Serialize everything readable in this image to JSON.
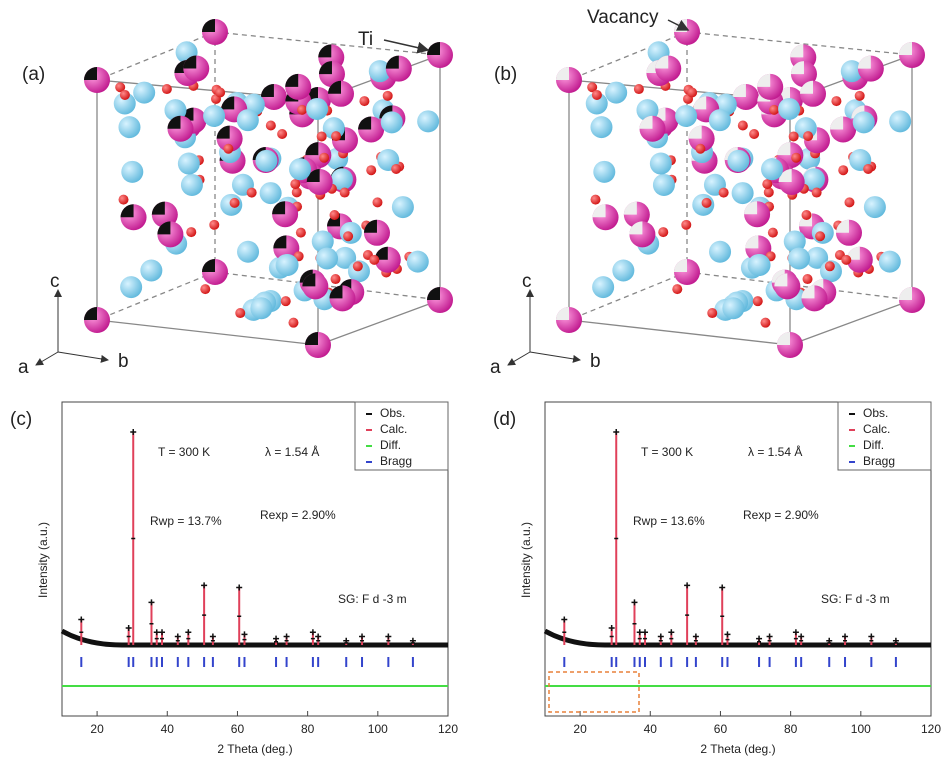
{
  "structures": [
    {
      "label": "(a)",
      "annotation": "Ti",
      "axes": [
        "a",
        "b",
        "c"
      ]
    },
    {
      "label": "(b)",
      "annotation": "Vacancy",
      "axes": [
        "a",
        "b",
        "c"
      ]
    }
  ],
  "charts": [
    {
      "type": "line",
      "label": "(c)",
      "xlabel": "2 Theta (deg.)",
      "ylabel": "Intensity (a.u.)",
      "xlim": [
        10,
        120
      ],
      "xticks": [
        20,
        40,
        60,
        80,
        100,
        120
      ],
      "temperature": "T = 300 K",
      "wavelength": "λ = 1.54 Å",
      "rwp": "Rwp = 13.7%",
      "rexp": "Rexp = 2.90%",
      "space_group": "SG: F d -3 m",
      "legend": [
        "Obs.",
        "Calc.",
        "Diff.",
        "Bragg"
      ],
      "peaks": {
        "x": [
          15.5,
          29,
          30.3,
          35.5,
          37,
          38.5,
          43,
          46,
          50.5,
          53,
          60.5,
          62,
          71,
          74,
          81.5,
          83,
          91,
          95.5,
          103,
          110
        ],
        "values": [
          12,
          8,
          100,
          20,
          6,
          6,
          4,
          6,
          28,
          4,
          27,
          5,
          3,
          4,
          6,
          4,
          2,
          4,
          4,
          2
        ]
      }
    },
    {
      "type": "line",
      "label": "(d)",
      "xlabel": "2 Theta (deg.)",
      "ylabel": "Intensity (a.u.)",
      "xlim": [
        10,
        120
      ],
      "xticks": [
        20,
        40,
        60,
        80,
        100,
        120
      ],
      "temperature": "T = 300 K",
      "wavelength": "λ = 1.54 Å",
      "rwp": "Rwp = 13.6%",
      "rexp": "Rexp = 2.90%",
      "space_group": "SG: F d -3 m",
      "legend": [
        "Obs.",
        "Calc.",
        "Diff.",
        "Bragg"
      ],
      "peaks": {
        "x": [
          15.5,
          29,
          30.3,
          35.5,
          37,
          38.5,
          43,
          46,
          50.5,
          53,
          60.5,
          62,
          71,
          74,
          81.5,
          83,
          91,
          95.5,
          103,
          110
        ],
        "values": [
          12,
          8,
          100,
          20,
          6,
          6,
          4,
          6,
          28,
          4,
          27,
          5,
          3,
          4,
          6,
          4,
          2,
          4,
          4,
          2
        ]
      }
    }
  ]
}
